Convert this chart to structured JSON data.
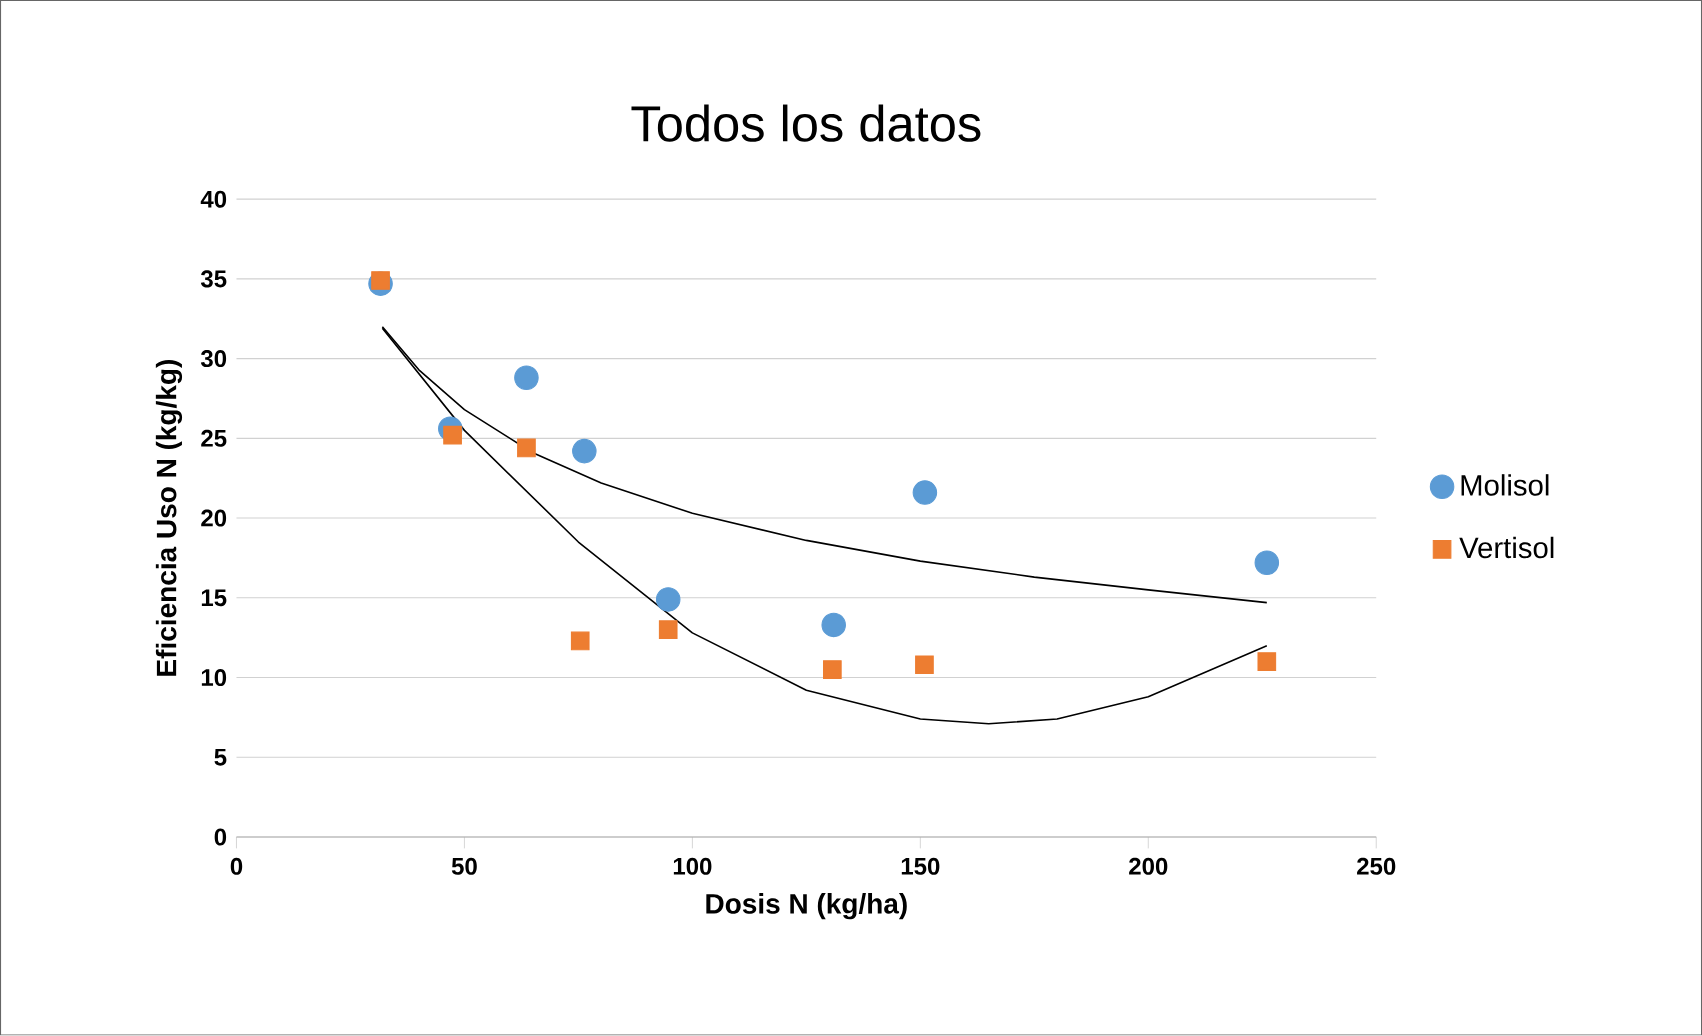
{
  "chart_data": {
    "type": "scatter",
    "title": "Todos los datos",
    "xlabel": "Dosis N (kg/ha)",
    "ylabel": "Eficiencia Uso N (kg/kg)",
    "xlim": [
      0,
      250
    ],
    "xticks": [
      0,
      50,
      100,
      150,
      200,
      250
    ],
    "ylim": [
      0,
      40
    ],
    "yticks": [
      0,
      5,
      10,
      15,
      20,
      25,
      30,
      35,
      40
    ],
    "grid": "y",
    "legend": "right",
    "series": [
      {
        "name": "Molisol",
        "color": "#5b9bd5",
        "marker": "circle",
        "x": [
          31.6,
          46.9,
          63.6,
          76.3,
          94.7,
          131,
          151,
          226
        ],
        "values": [
          34.7,
          25.6,
          28.8,
          24.2,
          14.9,
          13.3,
          21.6,
          17.2
        ]
      },
      {
        "name": "Vertisol",
        "color": "#ed7d31",
        "marker": "square",
        "x": [
          31.6,
          47.4,
          63.6,
          75.4,
          94.7,
          130.7,
          150.9,
          226
        ],
        "values": [
          34.9,
          25.2,
          24.4,
          12.3,
          13.0,
          10.5,
          10.8,
          11.0
        ]
      },
      {
        "type": "line",
        "color": "#000000",
        "marker": "none",
        "x": [
          32,
          40,
          50,
          65,
          80,
          100,
          125,
          150,
          175,
          200,
          226
        ],
        "values": [
          32.0,
          29.3,
          26.8,
          24.1,
          22.2,
          20.3,
          18.6,
          17.3,
          16.3,
          15.5,
          14.7
        ]
      },
      {
        "type": "line",
        "color": "#000000",
        "marker": "none",
        "x": [
          32,
          50,
          75,
          100,
          125,
          150,
          165,
          180,
          200,
          226
        ],
        "values": [
          31.9,
          25.5,
          18.5,
          12.8,
          9.2,
          7.4,
          7.1,
          7.4,
          8.8,
          12.0
        ]
      }
    ]
  }
}
